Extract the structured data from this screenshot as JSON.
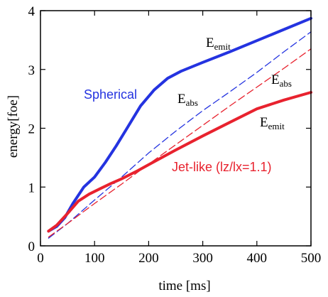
{
  "chart_data": {
    "type": "line",
    "xlabel": "time [ms]",
    "ylabel": "energy[foe]",
    "xlim": [
      0,
      500
    ],
    "ylim": [
      0,
      4
    ],
    "x_ticks": [
      0,
      100,
      200,
      300,
      400,
      500
    ],
    "y_ticks": [
      0,
      1,
      2,
      3,
      4
    ],
    "grid": false,
    "colors": {
      "blue": "#2433e0",
      "red": "#e8222e",
      "axis": "#000000"
    },
    "series": [
      {
        "color": "#2433e0",
        "style": "solid-thick",
        "x": [
          15,
          30,
          45,
          60,
          80,
          100,
          120,
          140,
          160,
          185,
          210,
          235,
          260,
          300,
          350,
          400,
          450,
          500
        ],
        "y": [
          0.25,
          0.33,
          0.48,
          0.72,
          1.0,
          1.17,
          1.42,
          1.7,
          2.0,
          2.38,
          2.65,
          2.85,
          2.97,
          3.12,
          3.3,
          3.49,
          3.68,
          3.87
        ]
      },
      {
        "color": "#2433e0",
        "style": "dashed-thin",
        "x": [
          15,
          50,
          100,
          150,
          200,
          250,
          300,
          350,
          400,
          450,
          500
        ],
        "y": [
          0.13,
          0.38,
          0.78,
          1.17,
          1.58,
          1.95,
          2.3,
          2.62,
          2.95,
          3.3,
          3.64
        ]
      },
      {
        "color": "#e8222e",
        "style": "solid-thick",
        "x": [
          15,
          30,
          50,
          70,
          90,
          110,
          130,
          150,
          180,
          200,
          250,
          300,
          350,
          400,
          450,
          500
        ],
        "y": [
          0.25,
          0.35,
          0.55,
          0.76,
          0.88,
          0.97,
          1.06,
          1.14,
          1.28,
          1.38,
          1.63,
          1.87,
          2.1,
          2.33,
          2.48,
          2.61
        ]
      },
      {
        "color": "#e8222e",
        "style": "dashed-thin",
        "x": [
          15,
          50,
          100,
          150,
          200,
          250,
          300,
          350,
          400,
          450,
          500
        ],
        "y": [
          0.15,
          0.38,
          0.72,
          1.05,
          1.39,
          1.72,
          2.05,
          2.38,
          2.7,
          3.02,
          3.35
        ]
      }
    ],
    "annotations": [
      {
        "id": "spherical",
        "text": "Spherical",
        "color": "#2433e0",
        "font": "sans"
      },
      {
        "id": "jetlike",
        "text": "Jet-like (lz/lx=1.1)",
        "color": "#e8222e",
        "font": "sans"
      },
      {
        "id": "emit_blue",
        "main": "E",
        "sub": "emit",
        "color": "#000000",
        "font": "serif"
      },
      {
        "id": "abs_blue",
        "main": "E",
        "sub": "abs",
        "color": "#000000",
        "font": "serif"
      },
      {
        "id": "abs_red",
        "main": "E",
        "sub": "abs",
        "color": "#000000",
        "font": "serif"
      },
      {
        "id": "emit_red",
        "main": "E",
        "sub": "emit",
        "color": "#000000",
        "font": "serif"
      }
    ]
  }
}
